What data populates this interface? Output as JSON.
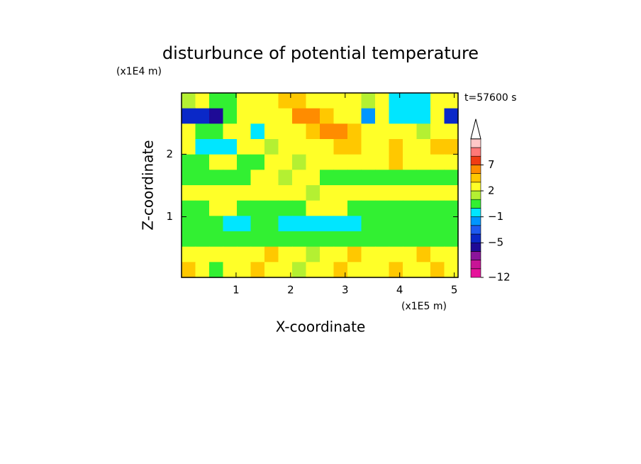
{
  "chart_data": {
    "type": "contour",
    "title": "disturbunce of potential temperature",
    "x_label": "X-coordinate",
    "y_label": "Z-coordinate",
    "x_unit": "(x1E5 m)",
    "y_unit": "(x1E4 m)",
    "time_label": "t=57600 s",
    "xlim": [
      0,
      5.07
    ],
    "ylim": [
      0.03,
      2.98
    ],
    "xticks": [
      1,
      2,
      3,
      4,
      5
    ],
    "yticks": [
      1,
      2
    ],
    "z": [
      [
        1.5,
        2.5,
        0.5,
        0.5,
        2.5,
        2.5,
        2.5,
        4,
        4,
        2.5,
        2.5,
        2.5,
        2.5,
        1.5,
        2.5,
        -0.5,
        -0.5,
        -0.5,
        2.5,
        2.5
      ],
      [
        -4.5,
        -4.5,
        -5.5,
        0.5,
        2.5,
        2.5,
        2.5,
        2.5,
        6,
        6,
        4,
        2.5,
        2.5,
        -1.5,
        2.5,
        -0.5,
        -0.5,
        -0.5,
        2.5,
        -4.5
      ],
      [
        2.5,
        0.5,
        0.5,
        2.5,
        2.5,
        -0.5,
        2.5,
        2.5,
        2.5,
        4,
        6,
        6,
        4,
        2.5,
        2.5,
        2.5,
        2.5,
        1.5,
        2.5,
        2.5
      ],
      [
        2.5,
        -0.5,
        -0.5,
        -0.5,
        2.5,
        2.5,
        1.5,
        2.5,
        2.5,
        2.5,
        2.5,
        4,
        4,
        2.5,
        2.5,
        4,
        2.5,
        2.5,
        4,
        4
      ],
      [
        0.5,
        0.5,
        2.5,
        2.5,
        0.5,
        0.5,
        2.5,
        2.5,
        1.5,
        2.5,
        2.5,
        2.5,
        2.5,
        2.5,
        2.5,
        4,
        2.5,
        2.5,
        2.5,
        2.5
      ],
      [
        0.5,
        0.5,
        0.5,
        0.5,
        0.5,
        2.5,
        2.5,
        1.5,
        2.5,
        2.5,
        0.5,
        0.5,
        0.5,
        0.5,
        0.5,
        0.5,
        0.5,
        0.5,
        0.5,
        0.5
      ],
      [
        2.5,
        2.5,
        2.5,
        2.5,
        2.5,
        2.5,
        2.5,
        2.5,
        2.5,
        1.5,
        2.5,
        2.5,
        2.5,
        2.5,
        2.5,
        2.5,
        2.5,
        2.5,
        2.5,
        2.5
      ],
      [
        0.5,
        0.5,
        2.5,
        2.5,
        0.5,
        0.5,
        0.5,
        0.5,
        0.5,
        2.5,
        2.5,
        2.5,
        0.5,
        0.5,
        0.5,
        0.5,
        0.5,
        0.5,
        0.5,
        0.5
      ],
      [
        0.5,
        0.5,
        0.5,
        -0.5,
        -0.5,
        0.5,
        0.5,
        -0.5,
        -0.5,
        -0.5,
        -0.5,
        -0.5,
        -0.5,
        0.5,
        0.5,
        0.5,
        0.5,
        0.5,
        0.5,
        0.5
      ],
      [
        0.5,
        0.5,
        0.5,
        0.5,
        0.5,
        0.5,
        0.5,
        0.5,
        0.5,
        0.5,
        0.5,
        0.5,
        0.5,
        0.5,
        0.5,
        0.5,
        0.5,
        0.5,
        0.5,
        0.5
      ],
      [
        2.5,
        2.5,
        2.5,
        2.5,
        2.5,
        2.5,
        4,
        2.5,
        2.5,
        1.5,
        2.5,
        2.5,
        4,
        2.5,
        2.5,
        2.5,
        2.5,
        4,
        2.5,
        2.5
      ],
      [
        4,
        2.5,
        0.5,
        2.5,
        2.5,
        4,
        2.5,
        2.5,
        1.5,
        2.5,
        2.5,
        4,
        2.5,
        2.5,
        2.5,
        4,
        2.5,
        2.5,
        4,
        2.5
      ]
    ],
    "levels": [
      -12,
      -10,
      -8,
      -6,
      -5,
      -4,
      -2,
      -1,
      0,
      1,
      2,
      3,
      5,
      7,
      9,
      11,
      13
    ],
    "colors": [
      "#e6149b",
      "#c81496",
      "#8b149b",
      "#1e0a96",
      "#0a28c8",
      "#1e5af0",
      "#0096ff",
      "#00e6ff",
      "#32f032",
      "#b4f032",
      "#ffff28",
      "#ffc800",
      "#ff8c00",
      "#f03c14",
      "#ff7878",
      "#ffc8c8"
    ],
    "colorbar_ticks": [
      {
        "value": -12,
        "label": "−12"
      },
      {
        "value": -5,
        "label": "−5"
      },
      {
        "value": -1,
        "label": "−1"
      },
      2,
      7
    ]
  }
}
